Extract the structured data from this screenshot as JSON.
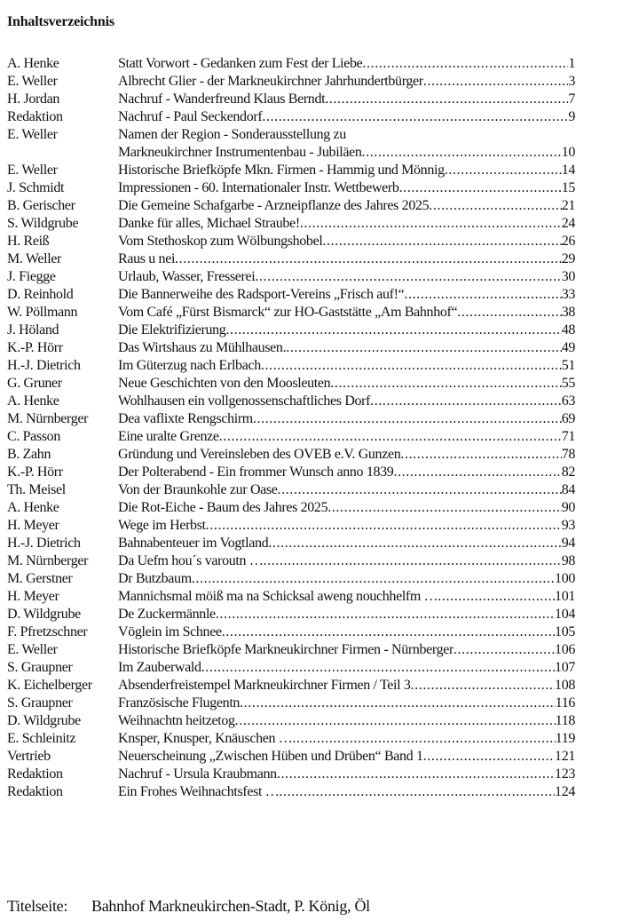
{
  "heading": "Inhaltsverzeichnis",
  "entries": [
    {
      "author": "A. Henke",
      "title": [
        "Statt Vorwort - Gedanken zum Fest der Liebe"
      ],
      "page": "1"
    },
    {
      "author": "E. Weller",
      "title": [
        "Albrecht Glier - der Markneukirchner Jahrhundertbürger"
      ],
      "page": "3"
    },
    {
      "author": "H. Jordan",
      "title": [
        "Nachruf - Wanderfreund Klaus Berndt"
      ],
      "page": "7"
    },
    {
      "author": "Redaktion",
      "title": [
        "Nachruf - Paul Seckendorf"
      ],
      "page": "9"
    },
    {
      "author": "E. Weller",
      "title": [
        "Namen der Region - Sonderausstellung zu",
        "Markneukirchner Instrumentenbau - Jubiläen"
      ],
      "page": "10"
    },
    {
      "author": "E. Weller",
      "title": [
        "Historische Briefköpfe Mkn. Firmen - Hammig und Mönnig"
      ],
      "page": "14"
    },
    {
      "author": "J. Schmidt",
      "title": [
        "Impressionen - 60. Internationaler Instr. Wettbewerb"
      ],
      "page": "15"
    },
    {
      "author": "B. Gerischer",
      "title": [
        "Die Gemeine Schafgarbe - Arzneipflanze des Jahres 2025"
      ],
      "page": "21"
    },
    {
      "author": "S. Wildgrube",
      "title": [
        "Danke für alles, Michael Straube!"
      ],
      "page": "24"
    },
    {
      "author": "H. Reiß",
      "title": [
        "Vom Stethoskop zum Wölbungshobel"
      ],
      "page": "26"
    },
    {
      "author": "M. Weller",
      "title": [
        "Raus u nei"
      ],
      "page": "29"
    },
    {
      "author": "J. Fiegge",
      "title": [
        "Urlaub, Wasser, Fresserei"
      ],
      "page": "30"
    },
    {
      "author": "D. Reinhold",
      "title": [
        "Die Bannerweihe des Radsport-Vereins „Frisch auf!“"
      ],
      "page": "33"
    },
    {
      "author": "W. Pöllmann",
      "title": [
        "Vom Café „Fürst Bismarck“ zur HO-Gaststätte „Am Bahnhof“"
      ],
      "page": "38"
    },
    {
      "author": "J. Höland",
      "title": [
        "Die Elektrifizierung"
      ],
      "page": "48"
    },
    {
      "author": "K.-P. Hörr",
      "title": [
        "Das Wirtshaus zu Mühlhausen."
      ],
      "page": "49"
    },
    {
      "author": "H.-J. Dietrich",
      "title": [
        "Im Güterzug nach Erlbach"
      ],
      "page": "51"
    },
    {
      "author": "G. Gruner",
      "title": [
        "Neue Geschichten von den Moosleuten"
      ],
      "page": "55"
    },
    {
      "author": "A. Henke",
      "title": [
        "Wohlhausen ein vollgenossenschaftliches Dorf"
      ],
      "page": "63"
    },
    {
      "author": "M. Nürnberger",
      "title": [
        "Dea vaflixte Rengschirm"
      ],
      "page": "69"
    },
    {
      "author": "C. Passon",
      "title": [
        "Eine uralte Grenze"
      ],
      "page": "71"
    },
    {
      "author": "B. Zahn",
      "title": [
        "Gründung und Vereinsleben des OVEB e.V. Gunzen"
      ],
      "page": "78"
    },
    {
      "author": "K.-P. Hörr",
      "title": [
        "Der Polterabend - Ein frommer Wunsch anno 1839"
      ],
      "page": "82"
    },
    {
      "author": "Th. Meisel",
      "title": [
        "Von der Braunkohle zur Oase"
      ],
      "page": "84"
    },
    {
      "author": "A. Henke",
      "title": [
        "Die Rot-Eiche - Baum des Jahres 2025"
      ],
      "page": "90"
    },
    {
      "author": "H. Meyer",
      "title": [
        "Wege im Herbst"
      ],
      "page": "93"
    },
    {
      "author": "H.-J. Dietrich",
      "title": [
        "Bahnabenteuer im Vogtland"
      ],
      "page": "94"
    },
    {
      "author": "M. Nürnberger",
      "title": [
        "Da Uefm hou´s varoutn …"
      ],
      "page": "98"
    },
    {
      "author": "M. Gerstner",
      "title": [
        "Dr Butzbaum"
      ],
      "page": "100"
    },
    {
      "author": "H. Meyer",
      "title": [
        "Mannichsmal möiß ma na Schicksal aweng nouchhelfm …"
      ],
      "page": "101"
    },
    {
      "author": "D. Wildgrube",
      "title": [
        "De Zuckermännle"
      ],
      "page": "104"
    },
    {
      "author": "F. Pfretzschner",
      "title": [
        "Vöglein im Schnee"
      ],
      "page": "105"
    },
    {
      "author": "E. Weller",
      "title": [
        "Historische Briefköpfe Markneukirchner Firmen - Nürnberger"
      ],
      "page": "106"
    },
    {
      "author": "S. Graupner",
      "title": [
        "Im Zauberwald"
      ],
      "page": "107"
    },
    {
      "author": "K. Eichelberger",
      "title": [
        "Absenderfreistempel Markneukirchner Firmen / Teil 3"
      ],
      "page": "108"
    },
    {
      "author": "S. Graupner",
      "title": [
        "Französische Flugentn"
      ],
      "page": "116"
    },
    {
      "author": "D. Wildgrube",
      "title": [
        "Weihnachtn heitzetog"
      ],
      "page": "118"
    },
    {
      "author": "E. Schleinitz",
      "title": [
        "Knsper, Knusper, Knäuschen …"
      ],
      "page": "119"
    },
    {
      "author": "Vertrieb",
      "title": [
        "Neuerscheinung „Zwischen Hüben und Drüben“ Band 1"
      ],
      "page": "121"
    },
    {
      "author": "Redaktion",
      "title": [
        "Nachruf - Ursula Kraubmann"
      ],
      "page": "123"
    },
    {
      "author": "Redaktion",
      "title": [
        "Ein Frohes Weihnachtsfest …"
      ],
      "page": "124"
    }
  ],
  "footer": {
    "label": "Titelseite:",
    "text": "Bahnhof Markneukirchen-Stadt, P. König, Öl"
  }
}
